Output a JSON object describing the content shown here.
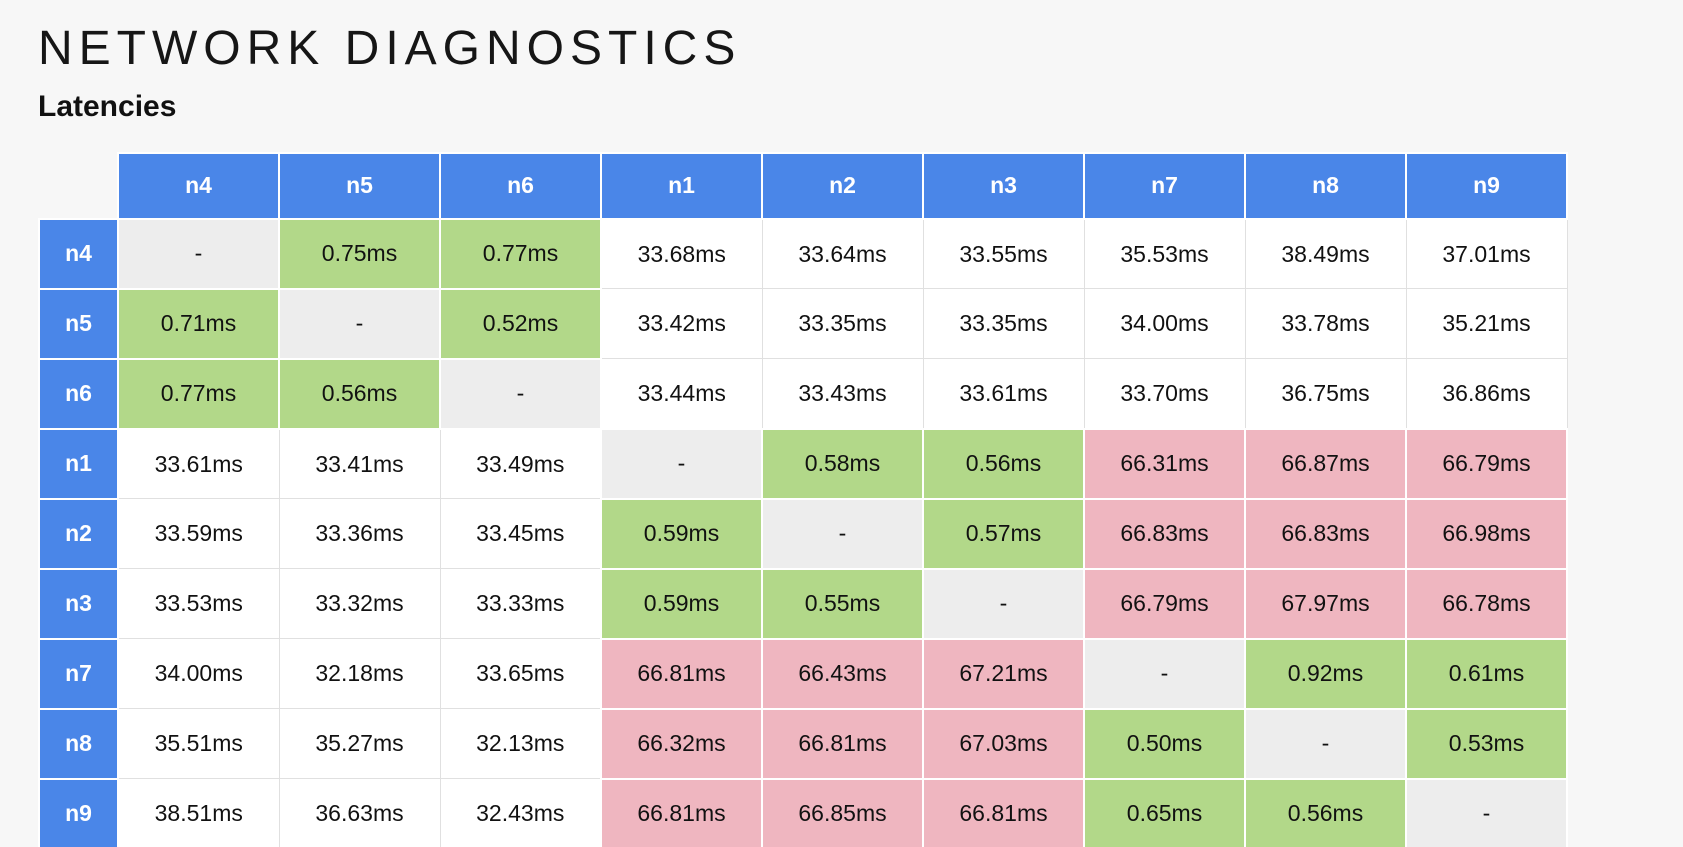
{
  "page": {
    "title": "NETWORK DIAGNOSTICS",
    "subtitle": "Latencies"
  },
  "colors": {
    "header_blue": "#4a86e8",
    "green": "#b2d889",
    "pink": "#efb6c0",
    "diagonal_gray": "#ededed",
    "page_background": "#f7f7f7",
    "cell_text": "#111111"
  },
  "chart_data": {
    "type": "heatmap",
    "title": "Latencies",
    "unit": "ms",
    "columns": [
      "n4",
      "n5",
      "n6",
      "n1",
      "n2",
      "n3",
      "n7",
      "n8",
      "n9"
    ],
    "rows": [
      "n4",
      "n5",
      "n6",
      "n1",
      "n2",
      "n3",
      "n7",
      "n8",
      "n9"
    ],
    "diagonal_marker": "-",
    "cells": [
      [
        "-",
        "0.75ms",
        "0.77ms",
        "33.68ms",
        "33.64ms",
        "33.55ms",
        "35.53ms",
        "38.49ms",
        "37.01ms"
      ],
      [
        "0.71ms",
        "-",
        "0.52ms",
        "33.42ms",
        "33.35ms",
        "33.35ms",
        "34.00ms",
        "33.78ms",
        "35.21ms"
      ],
      [
        "0.77ms",
        "0.56ms",
        "-",
        "33.44ms",
        "33.43ms",
        "33.61ms",
        "33.70ms",
        "36.75ms",
        "36.86ms"
      ],
      [
        "33.61ms",
        "33.41ms",
        "33.49ms",
        "-",
        "0.58ms",
        "0.56ms",
        "66.31ms",
        "66.87ms",
        "66.79ms"
      ],
      [
        "33.59ms",
        "33.36ms",
        "33.45ms",
        "0.59ms",
        "-",
        "0.57ms",
        "66.83ms",
        "66.83ms",
        "66.98ms"
      ],
      [
        "33.53ms",
        "33.32ms",
        "33.33ms",
        "0.59ms",
        "0.55ms",
        "-",
        "66.79ms",
        "67.97ms",
        "66.78ms"
      ],
      [
        "34.00ms",
        "32.18ms",
        "33.65ms",
        "66.81ms",
        "66.43ms",
        "67.21ms",
        "-",
        "0.92ms",
        "0.61ms"
      ],
      [
        "35.51ms",
        "35.27ms",
        "32.13ms",
        "66.32ms",
        "66.81ms",
        "67.03ms",
        "0.50ms",
        "-",
        "0.53ms"
      ],
      [
        "38.51ms",
        "36.63ms",
        "32.43ms",
        "66.81ms",
        "66.85ms",
        "66.81ms",
        "0.65ms",
        "0.56ms",
        "-"
      ]
    ],
    "color_rule": {
      "green_below_ms": 1,
      "pink_at_or_above_ms": 60,
      "white_otherwise": true,
      "gray_for_diagonal": true
    }
  }
}
